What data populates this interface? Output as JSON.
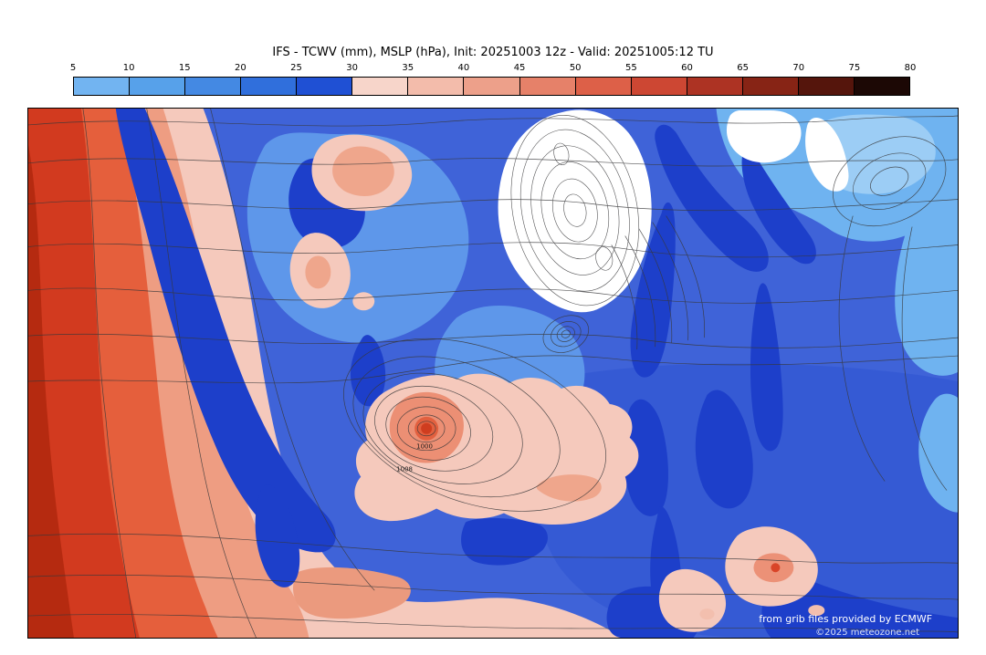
{
  "title": "IFS - TCWV (mm), MSLP (hPa), Init: 20251003 12z - Valid: 20251005:12 TU",
  "colorbar": {
    "unit": "mm",
    "ticks": [
      "5",
      "10",
      "15",
      "20",
      "25",
      "30",
      "35",
      "40",
      "45",
      "50",
      "55",
      "60",
      "65",
      "70",
      "75",
      "80"
    ],
    "colors": [
      "#72b4f1",
      "#57a1ea",
      "#4489e3",
      "#306fdc",
      "#1f50d4",
      "#f7d5ca",
      "#f3bcab",
      "#eda08a",
      "#e68169",
      "#dd6048",
      "#cd4733",
      "#ad3323",
      "#872415",
      "#55150c",
      "#1c0805"
    ]
  },
  "map": {
    "attribution": "from grib files provided by ECMWF",
    "copyright": "©2025 meteozone.net",
    "pressure_labels": [
      "1000",
      "1008"
    ]
  },
  "chart_data": {
    "type": "heatmap",
    "title": "IFS - TCWV (mm), MSLP (hPa), Init: 20251003 12z - Valid: 20251005:12 TU",
    "model": "IFS",
    "shaded_field": "TCWV",
    "shaded_unit": "mm",
    "contour_field": "MSLP",
    "contour_unit": "hPa",
    "init": "20251003 12z",
    "valid": "20251005:12 TU",
    "region": "North Atlantic / Greenland / Europe",
    "legend_levels": [
      5,
      10,
      15,
      20,
      25,
      30,
      35,
      40,
      45,
      50,
      55,
      60,
      65,
      70,
      75,
      80
    ],
    "legend_colors": [
      "#72b4f1",
      "#57a1ea",
      "#4489e3",
      "#306fdc",
      "#1f50d4",
      "#f7d5ca",
      "#f3bcab",
      "#eda08a",
      "#e68169",
      "#dd6048",
      "#cd4733",
      "#ad3323",
      "#872415",
      "#55150c",
      "#1c0805"
    ],
    "visible_contour_labels_hPa": [
      1000,
      1008
    ],
    "notable_features": [
      "high TCWV plume (45-80 mm) along western/left edge of domain",
      "dry white area (<5 mm) over Greenland ice sheet with dense contours",
      "closed low with tight MSLP isobars (~1000 hPa) in mid-Atlantic with 30-45 mm moisture",
      "moist band (30-40 mm) along southern edge of domain",
      "small moist low over Mediterranean / Italy region"
    ]
  }
}
